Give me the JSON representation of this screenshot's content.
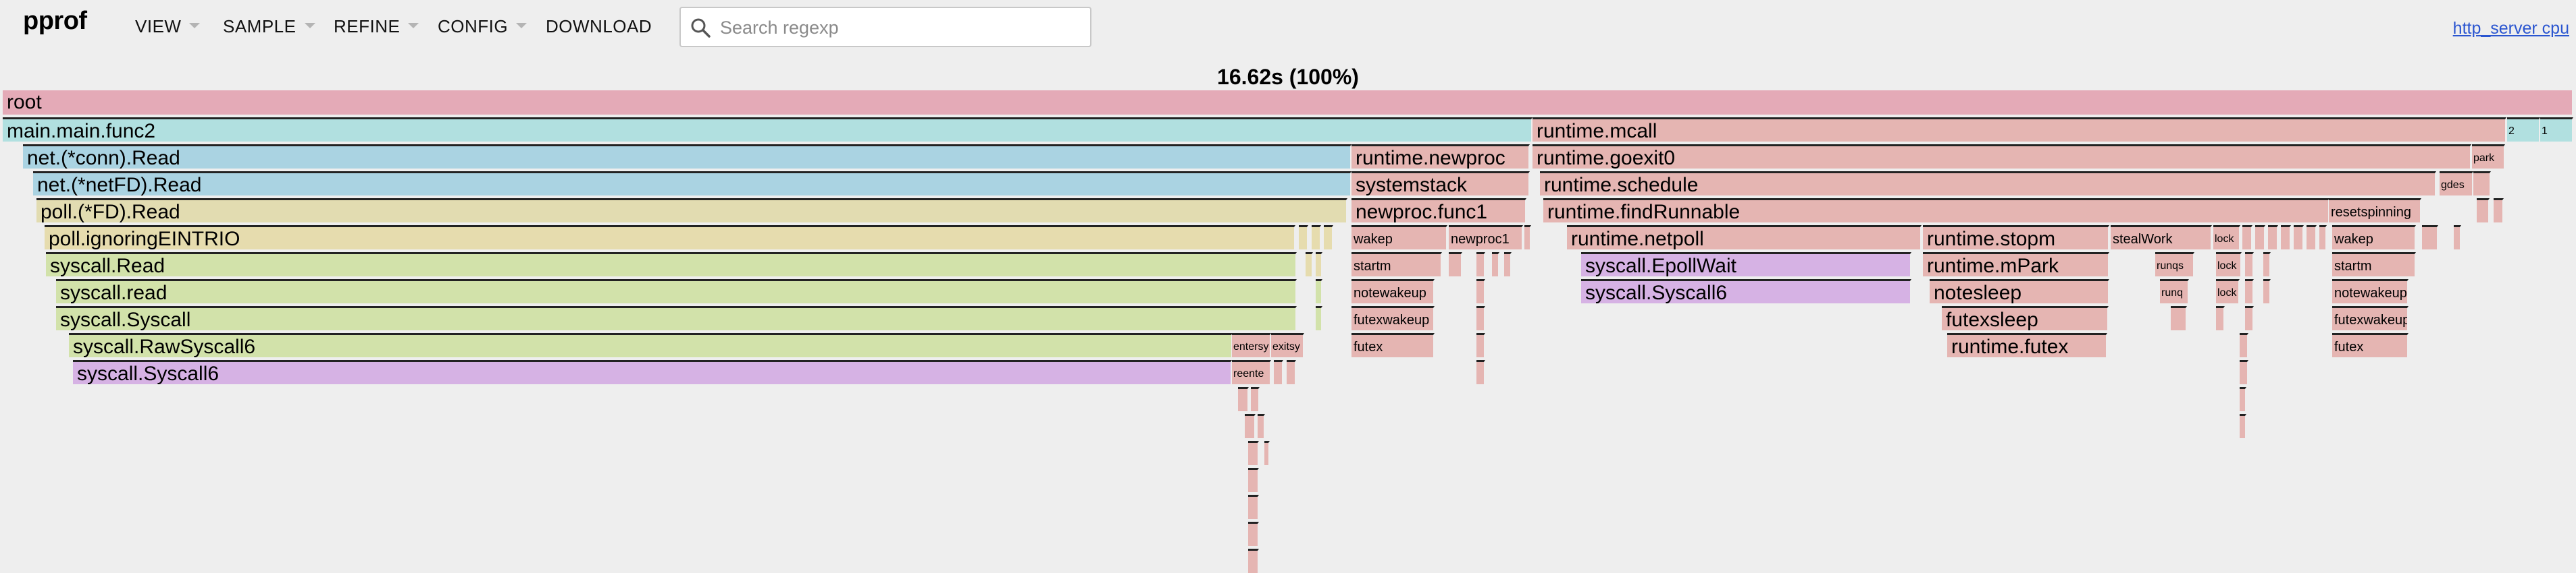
{
  "app": {
    "logo": "pprof"
  },
  "menu": {
    "view": "VIEW",
    "sample": "SAMPLE",
    "refine": "REFINE",
    "config": "CONFIG",
    "download": "DOWNLOAD"
  },
  "search": {
    "placeholder": "Search regexp",
    "value": ""
  },
  "profile_link": "http_server cpu",
  "total_label": "16.62s (100%)",
  "colors": {
    "pink": "#e4aab7",
    "cyan": "#b1e0e0",
    "blue": "#aad3e2",
    "sand": "#e2dcb1",
    "tan": "#e6dcae",
    "green": "#d2e2aa",
    "purple": "#d6b2e4",
    "salmon": "#e5b5b2"
  },
  "flame": {
    "frames": [
      {
        "label": "root",
        "start": 0.0,
        "width": 1.0,
        "depth": 0,
        "color": "pink"
      },
      {
        "label": "main.main.func2",
        "start": 0.0,
        "width": 0.5952,
        "depth": 1,
        "color": "cyan"
      },
      {
        "label": "runtime.mcall",
        "start": 0.5952,
        "width": 0.379,
        "depth": 1,
        "color": "salmon"
      },
      {
        "label": "2",
        "start": 0.9742,
        "width": 0.0128,
        "depth": 1,
        "color": "cyan"
      },
      {
        "label": "1",
        "start": 0.987,
        "width": 0.013,
        "depth": 1,
        "color": "cyan"
      },
      {
        "label": "net.(*conn).Read",
        "start": 0.0079,
        "width": 0.5169,
        "depth": 2,
        "color": "blue"
      },
      {
        "label": "runtime.newproc",
        "start": 0.5248,
        "width": 0.0694,
        "depth": 2,
        "color": "salmon"
      },
      {
        "label": "runtime.goexit0",
        "start": 0.5952,
        "width": 0.3653,
        "depth": 2,
        "color": "salmon"
      },
      {
        "label": "park",
        "start": 0.9605,
        "width": 0.0128,
        "depth": 2,
        "color": "salmon"
      },
      {
        "label": "net.(*netFD).Read",
        "start": 0.0118,
        "width": 0.513,
        "depth": 3,
        "color": "blue"
      },
      {
        "label": "systemstack",
        "start": 0.5248,
        "width": 0.0694,
        "depth": 3,
        "color": "salmon"
      },
      {
        "label": "runtime.schedule",
        "start": 0.5979,
        "width": 0.3486,
        "depth": 3,
        "color": "salmon"
      },
      {
        "label": "gdes",
        "start": 0.9481,
        "width": 0.0131,
        "depth": 3,
        "color": "salmon"
      },
      {
        "label": "",
        "start": 0.9612,
        "width": 0.0068,
        "depth": 3,
        "color": "salmon"
      },
      {
        "label": "poll.(*FD).Read",
        "start": 0.0131,
        "width": 0.5099,
        "depth": 4,
        "color": "sand"
      },
      {
        "label": "newproc.func1",
        "start": 0.5248,
        "width": 0.0681,
        "depth": 4,
        "color": "salmon"
      },
      {
        "label": "runtime.findRunnable",
        "start": 0.5992,
        "width": 0.3058,
        "depth": 4,
        "color": "salmon"
      },
      {
        "label": "resetspinning",
        "start": 0.905,
        "width": 0.036,
        "depth": 4,
        "color": "salmon"
      },
      {
        "label": "",
        "start": 0.9625,
        "width": 0.005,
        "depth": 4,
        "color": "salmon"
      },
      {
        "label": "",
        "start": 0.969,
        "width": 0.004,
        "depth": 4,
        "color": "salmon"
      },
      {
        "label": "poll.ignoringEINTRIO",
        "start": 0.0163,
        "width": 0.4866,
        "depth": 5,
        "color": "tan"
      },
      {
        "label": "",
        "start": 0.5042,
        "width": 0.0037,
        "depth": 5,
        "color": "tan"
      },
      {
        "label": "",
        "start": 0.5092,
        "width": 0.0037,
        "depth": 5,
        "color": "tan"
      },
      {
        "label": "",
        "start": 0.514,
        "width": 0.0037,
        "depth": 5,
        "color": "tan"
      },
      {
        "label": "wakep",
        "start": 0.5248,
        "width": 0.0373,
        "depth": 5,
        "color": "salmon"
      },
      {
        "label": "newproc1",
        "start": 0.5625,
        "width": 0.0289,
        "depth": 5,
        "color": "salmon"
      },
      {
        "label": "",
        "start": 0.592,
        "width": 0.0025,
        "depth": 5,
        "color": "salmon"
      },
      {
        "label": "runtime.netpoll",
        "start": 0.6084,
        "width": 0.138,
        "depth": 5,
        "color": "salmon"
      },
      {
        "label": "runtime.stopm",
        "start": 0.7469,
        "width": 0.0724,
        "depth": 5,
        "color": "salmon"
      },
      {
        "label": "stealWork",
        "start": 0.8199,
        "width": 0.0394,
        "depth": 5,
        "color": "salmon"
      },
      {
        "label": "lock",
        "start": 0.8599,
        "width": 0.0105,
        "depth": 5,
        "color": "salmon"
      },
      {
        "label": "",
        "start": 0.8712,
        "width": 0.004,
        "depth": 5,
        "color": "salmon"
      },
      {
        "label": "",
        "start": 0.8762,
        "width": 0.004,
        "depth": 5,
        "color": "salmon"
      },
      {
        "label": "",
        "start": 0.8812,
        "width": 0.004,
        "depth": 5,
        "color": "salmon"
      },
      {
        "label": "",
        "start": 0.8862,
        "width": 0.004,
        "depth": 5,
        "color": "salmon"
      },
      {
        "label": "",
        "start": 0.8912,
        "width": 0.004,
        "depth": 5,
        "color": "salmon"
      },
      {
        "label": "",
        "start": 0.8962,
        "width": 0.004,
        "depth": 5,
        "color": "salmon"
      },
      {
        "label": "",
        "start": 0.9012,
        "width": 0.003,
        "depth": 5,
        "color": "salmon"
      },
      {
        "label": "wakep",
        "start": 0.9063,
        "width": 0.0325,
        "depth": 5,
        "color": "salmon"
      },
      {
        "label": "",
        "start": 0.9412,
        "width": 0.0062,
        "depth": 5,
        "color": "salmon"
      },
      {
        "label": "",
        "start": 0.9535,
        "width": 0.0028,
        "depth": 5,
        "color": "salmon"
      },
      {
        "label": "syscall.Read",
        "start": 0.0169,
        "width": 0.4866,
        "depth": 6,
        "color": "green"
      },
      {
        "label": "",
        "start": 0.5068,
        "width": 0.0028,
        "depth": 6,
        "color": "tan"
      },
      {
        "label": "",
        "start": 0.5109,
        "width": 0.0026,
        "depth": 6,
        "color": "tan"
      },
      {
        "label": "startm",
        "start": 0.5248,
        "width": 0.0352,
        "depth": 6,
        "color": "salmon"
      },
      {
        "label": "",
        "start": 0.5625,
        "width": 0.0052,
        "depth": 6,
        "color": "salmon"
      },
      {
        "label": "",
        "start": 0.5734,
        "width": 0.0034,
        "depth": 6,
        "color": "salmon"
      },
      {
        "label": "",
        "start": 0.5793,
        "width": 0.0029,
        "depth": 6,
        "color": "salmon"
      },
      {
        "label": "",
        "start": 0.584,
        "width": 0.0028,
        "depth": 6,
        "color": "salmon"
      },
      {
        "label": "syscall.EpollWait",
        "start": 0.6139,
        "width": 0.1284,
        "depth": 6,
        "color": "purple"
      },
      {
        "label": "runtime.mPark",
        "start": 0.7469,
        "width": 0.0724,
        "depth": 6,
        "color": "salmon"
      },
      {
        "label": "runqs",
        "start": 0.8374,
        "width": 0.0152,
        "depth": 6,
        "color": "salmon"
      },
      {
        "label": "lock",
        "start": 0.8609,
        "width": 0.0099,
        "depth": 6,
        "color": "salmon"
      },
      {
        "label": "",
        "start": 0.8723,
        "width": 0.0034,
        "depth": 6,
        "color": "salmon"
      },
      {
        "label": "",
        "start": 0.8795,
        "width": 0.0029,
        "depth": 6,
        "color": "salmon"
      },
      {
        "label": "startm",
        "start": 0.9063,
        "width": 0.0325,
        "depth": 6,
        "color": "salmon"
      },
      {
        "label": "syscall.read",
        "start": 0.0208,
        "width": 0.4827,
        "depth": 7,
        "color": "green"
      },
      {
        "label": "",
        "start": 0.5109,
        "width": 0.0026,
        "depth": 7,
        "color": "green"
      },
      {
        "label": "notewakeup",
        "start": 0.5248,
        "width": 0.0323,
        "depth": 7,
        "color": "salmon"
      },
      {
        "label": "",
        "start": 0.5734,
        "width": 0.0034,
        "depth": 7,
        "color": "salmon"
      },
      {
        "label": "syscall.Syscall6",
        "start": 0.6139,
        "width": 0.1284,
        "depth": 7,
        "color": "purple"
      },
      {
        "label": "notesleep",
        "start": 0.7495,
        "width": 0.0698,
        "depth": 7,
        "color": "salmon"
      },
      {
        "label": "runq",
        "start": 0.8393,
        "width": 0.0112,
        "depth": 7,
        "color": "salmon"
      },
      {
        "label": "lock",
        "start": 0.8609,
        "width": 0.0091,
        "depth": 7,
        "color": "salmon"
      },
      {
        "label": "",
        "start": 0.8723,
        "width": 0.0034,
        "depth": 7,
        "color": "salmon"
      },
      {
        "label": "",
        "start": 0.8795,
        "width": 0.0029,
        "depth": 7,
        "color": "salmon"
      },
      {
        "label": "notewakeup",
        "start": 0.9063,
        "width": 0.0296,
        "depth": 7,
        "color": "salmon"
      },
      {
        "label": "syscall.Syscall",
        "start": 0.0208,
        "width": 0.4827,
        "depth": 8,
        "color": "green"
      },
      {
        "label": "",
        "start": 0.5109,
        "width": 0.0026,
        "depth": 8,
        "color": "green"
      },
      {
        "label": "futexwakeup",
        "start": 0.5248,
        "width": 0.0323,
        "depth": 8,
        "color": "salmon"
      },
      {
        "label": "",
        "start": 0.5734,
        "width": 0.0034,
        "depth": 8,
        "color": "salmon"
      },
      {
        "label": "futexsleep",
        "start": 0.7544,
        "width": 0.0649,
        "depth": 8,
        "color": "salmon"
      },
      {
        "label": "",
        "start": 0.8433,
        "width": 0.0062,
        "depth": 8,
        "color": "salmon"
      },
      {
        "label": "",
        "start": 0.8609,
        "width": 0.0034,
        "depth": 8,
        "color": "salmon"
      },
      {
        "label": "",
        "start": 0.8723,
        "width": 0.0034,
        "depth": 8,
        "color": "salmon"
      },
      {
        "label": "futexwakeup",
        "start": 0.9063,
        "width": 0.0296,
        "depth": 8,
        "color": "salmon"
      },
      {
        "label": "syscall.RawSyscall6",
        "start": 0.0257,
        "width": 0.4526,
        "depth": 9,
        "color": "green"
      },
      {
        "label": "entersy",
        "start": 0.4783,
        "width": 0.0152,
        "depth": 9,
        "color": "salmon"
      },
      {
        "label": "exitsy",
        "start": 0.4935,
        "width": 0.0128,
        "depth": 9,
        "color": "salmon"
      },
      {
        "label": "futex",
        "start": 0.5248,
        "width": 0.0323,
        "depth": 9,
        "color": "salmon"
      },
      {
        "label": "",
        "start": 0.5734,
        "width": 0.0034,
        "depth": 9,
        "color": "salmon"
      },
      {
        "label": "runtime.futex",
        "start": 0.7564,
        "width": 0.0624,
        "depth": 9,
        "color": "salmon"
      },
      {
        "label": "",
        "start": 0.8701,
        "width": 0.0034,
        "depth": 9,
        "color": "salmon"
      },
      {
        "label": "futex",
        "start": 0.9063,
        "width": 0.0296,
        "depth": 9,
        "color": "salmon"
      },
      {
        "label": "syscall.Syscall6",
        "start": 0.0274,
        "width": 0.4509,
        "depth": 10,
        "color": "purple"
      },
      {
        "label": "reente",
        "start": 0.4783,
        "width": 0.0152,
        "depth": 10,
        "color": "salmon"
      },
      {
        "label": "",
        "start": 0.4946,
        "width": 0.0037,
        "depth": 10,
        "color": "salmon"
      },
      {
        "label": "",
        "start": 0.4994,
        "width": 0.0037,
        "depth": 10,
        "color": "salmon"
      },
      {
        "label": "",
        "start": 0.5734,
        "width": 0.0034,
        "depth": 10,
        "color": "salmon"
      },
      {
        "label": "",
        "start": 0.8701,
        "width": 0.0034,
        "depth": 10,
        "color": "salmon"
      },
      {
        "label": "",
        "start": 0.4806,
        "width": 0.0042,
        "depth": 11,
        "color": "salmon"
      },
      {
        "label": "",
        "start": 0.4856,
        "width": 0.0034,
        "depth": 11,
        "color": "salmon"
      },
      {
        "label": "",
        "start": 0.8701,
        "width": 0.0026,
        "depth": 11,
        "color": "salmon"
      },
      {
        "label": "",
        "start": 0.4832,
        "width": 0.0042,
        "depth": 12,
        "color": "salmon"
      },
      {
        "label": "",
        "start": 0.4883,
        "width": 0.0028,
        "depth": 12,
        "color": "salmon"
      },
      {
        "label": "",
        "start": 0.8701,
        "width": 0.0026,
        "depth": 12,
        "color": "salmon"
      },
      {
        "label": "",
        "start": 0.4845,
        "width": 0.0042,
        "depth": 13,
        "color": "salmon"
      },
      {
        "label": "",
        "start": 0.4908,
        "width": 0.0022,
        "depth": 13,
        "color": "salmon"
      },
      {
        "label": "",
        "start": 0.4845,
        "width": 0.0042,
        "depth": 14,
        "color": "salmon"
      },
      {
        "label": "",
        "start": 0.4845,
        "width": 0.0042,
        "depth": 15,
        "color": "salmon"
      },
      {
        "label": "",
        "start": 0.4845,
        "width": 0.0042,
        "depth": 16,
        "color": "salmon"
      },
      {
        "label": "",
        "start": 0.4845,
        "width": 0.0042,
        "depth": 17,
        "color": "salmon"
      }
    ]
  }
}
